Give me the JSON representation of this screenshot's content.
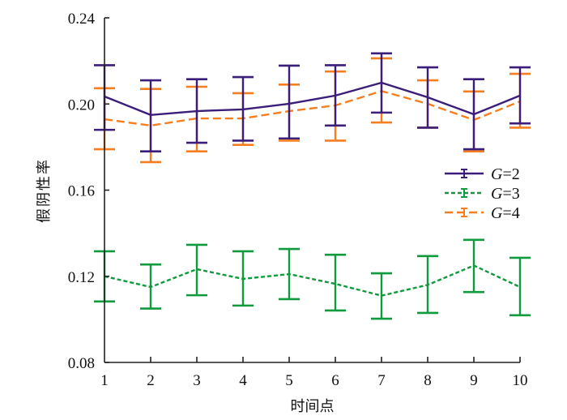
{
  "chart_data": {
    "type": "line",
    "title": "",
    "xlabel": "时间点",
    "ylabel": "假阴性率",
    "x": [
      1,
      2,
      3,
      4,
      5,
      6,
      7,
      8,
      9,
      10
    ],
    "xticks": [
      "1",
      "2",
      "3",
      "4",
      "5",
      "6",
      "7",
      "8",
      "9",
      "10"
    ],
    "xlim": [
      1,
      10
    ],
    "ylim": [
      0.08,
      0.24
    ],
    "yticks": [
      0.08,
      0.12,
      0.16,
      0.2,
      0.24
    ],
    "ytick_labels": [
      "0.08",
      "0.12",
      "0.16",
      "0.20",
      "0.24"
    ],
    "grid": false,
    "legend_position": "right-middle",
    "series": [
      {
        "name": "G=2",
        "name_italic_part": "G",
        "name_rest": "=2",
        "color": "#3b1d7a",
        "dash": "solid",
        "values": [
          0.2035,
          0.1949,
          0.1967,
          0.1975,
          0.2001,
          0.2039,
          0.2099,
          0.2031,
          0.1952,
          0.2039
        ],
        "upper": [
          0.218,
          0.211,
          0.2115,
          0.2125,
          0.2178,
          0.218,
          0.2235,
          0.217,
          0.2115,
          0.217
        ],
        "lower": [
          0.188,
          0.178,
          0.182,
          0.183,
          0.184,
          0.19,
          0.196,
          0.189,
          0.179,
          0.191
        ]
      },
      {
        "name": "G=3",
        "name_italic_part": "G",
        "name_rest": "=3",
        "color": "#0f9a3e",
        "dash": "dotted",
        "values": [
          0.12,
          0.115,
          0.1233,
          0.1188,
          0.121,
          0.1165,
          0.111,
          0.116,
          0.125,
          0.115
        ],
        "upper": [
          0.1316,
          0.1255,
          0.1346,
          0.1316,
          0.1327,
          0.13,
          0.1214,
          0.1294,
          0.1369,
          0.1286
        ],
        "lower": [
          0.1083,
          0.105,
          0.1112,
          0.1064,
          0.1094,
          0.1041,
          0.1003,
          0.103,
          0.1127,
          0.1019
        ]
      },
      {
        "name": "G=4",
        "name_italic_part": "G",
        "name_rest": "=4",
        "color": "#f57f20",
        "dash": "dashed",
        "values": [
          0.1929,
          0.19,
          0.1933,
          0.1933,
          0.1967,
          0.1993,
          0.206,
          0.2001,
          0.1926,
          0.2012
        ],
        "upper": [
          0.2073,
          0.207,
          0.208,
          0.205,
          0.209,
          0.2151,
          0.2212,
          0.211,
          0.2058,
          0.214
        ],
        "lower": [
          0.179,
          0.173,
          0.178,
          0.181,
          0.183,
          0.183,
          0.1914,
          0.189,
          0.178,
          0.189
        ]
      }
    ]
  }
}
